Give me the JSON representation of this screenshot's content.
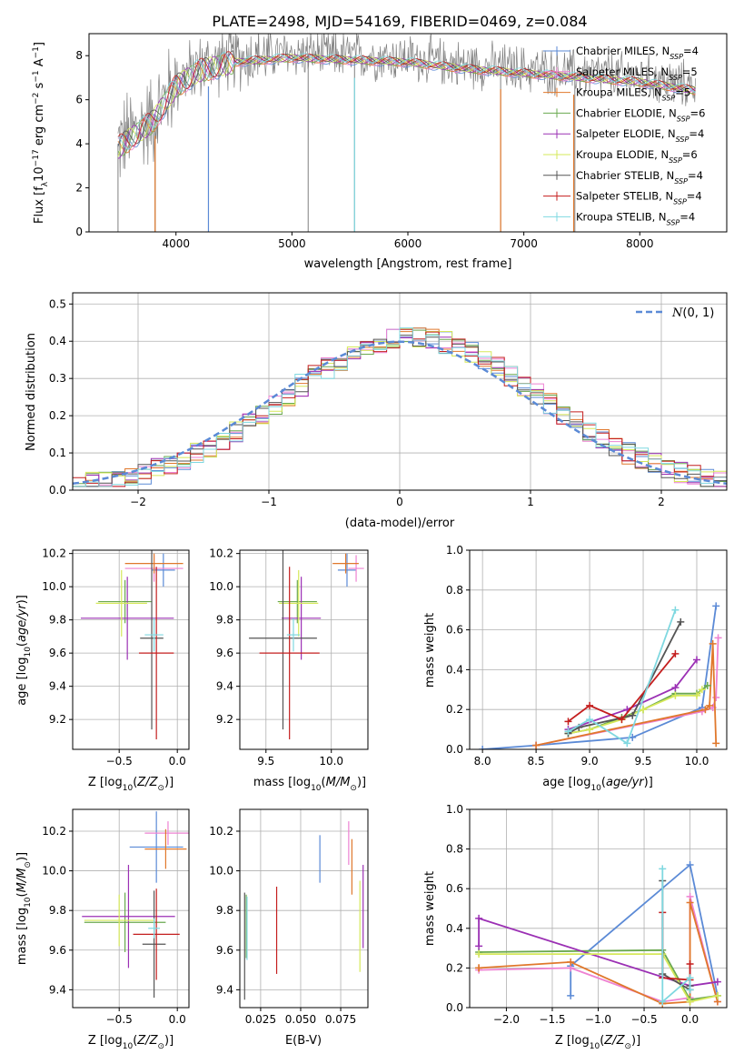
{
  "figure_title": "PLATE=2498, MJD=54169, FIBERID=0469, z=0.084",
  "colors": {
    "Chabrier MILES": "#5b8ad6",
    "Salpeter MILES": "#ee82d2",
    "Kroupa MILES": "#e0782c",
    "Chabrier ELODIE": "#6aa84f",
    "Salpeter ELODIE": "#9b30b4",
    "Kroupa ELODIE": "#d6e85a",
    "Chabrier STELIB": "#555555",
    "Salpeter STELIB": "#c41e1e",
    "Kroupa STELIB": "#7fd8e0",
    "spectrum": "#808080",
    "gaussian": "#5b8ad6"
  },
  "chart_data": [
    {
      "type": "line",
      "id": "spectrum",
      "xlabel": "wavelength [Angstrom, rest frame]",
      "ylabel": "Flux [f_λ 10^-17 erg cm^-2 s^-1 A^-1]",
      "xlim": [
        3250,
        8750
      ],
      "ylim": [
        0,
        9
      ],
      "xticks": [
        "4000",
        "5000",
        "6000",
        "7000",
        "8000"
      ],
      "yticks": [
        "0",
        "2",
        "4",
        "6",
        "8"
      ],
      "continuum": {
        "x": [
          3500,
          3800,
          4000,
          4200,
          4500,
          5000,
          5500,
          6000,
          6500,
          7000,
          7500,
          8000,
          8500
        ],
        "y": [
          4.0,
          5.2,
          6.8,
          7.5,
          7.9,
          8.1,
          8.0,
          7.9,
          7.6,
          7.4,
          7.2,
          7.0,
          6.6
        ]
      },
      "series": [
        {
          "name": "Chabrier MILES, N_SSP=4"
        },
        {
          "name": "Salpeter MILES, N_SSP=5"
        },
        {
          "name": "Kroupa MILES, N_SSP=5"
        },
        {
          "name": "Chabrier ELODIE, N_SSP=6"
        },
        {
          "name": "Salpeter ELODIE, N_SSP=4"
        },
        {
          "name": "Kroupa ELODIE, N_SSP=6"
        },
        {
          "name": "Chabrier STELIB, N_SSP=4"
        },
        {
          "name": "Salpeter STELIB, N_SSP=4"
        },
        {
          "name": "Kroupa STELIB, N_SSP=4"
        }
      ]
    },
    {
      "type": "line",
      "id": "residuals",
      "xlabel": "(data-model)/error",
      "ylabel": "Normed distribution",
      "xlim": [
        -2.5,
        2.5
      ],
      "ylim": [
        0,
        0.53
      ],
      "xticks": [
        "−2",
        "−1",
        "0",
        "1",
        "2"
      ],
      "yticks": [
        "0.0",
        "0.1",
        "0.2",
        "0.3",
        "0.4",
        "0.5"
      ],
      "legend": "N(0,1)",
      "legend_position": "top-right"
    },
    {
      "type": "scatter",
      "id": "age_vs_Z",
      "xlabel": "Z [log10(Z/Z⊙)]",
      "ylabel": "age [log10(age/yr)]",
      "xlim": [
        -0.9,
        0.1
      ],
      "ylim": [
        9.02,
        10.22
      ],
      "xticks": [
        "−0.5",
        "0.0"
      ],
      "yticks": [
        "9.2",
        "9.4",
        "9.6",
        "9.8",
        "10.0",
        "10.2"
      ],
      "points": [
        {
          "name": "Chabrier MILES",
          "x": -0.12,
          "xerr": 0.1,
          "y": 10.1,
          "yerr": 0.1
        },
        {
          "name": "Salpeter MILES",
          "x": -0.2,
          "xerr": 0.25,
          "y": 10.11,
          "yerr": 0.08
        },
        {
          "name": "Kroupa MILES",
          "x": -0.2,
          "xerr": 0.25,
          "y": 10.14,
          "yerr": 0.06
        },
        {
          "name": "Chabrier ELODIE",
          "x": -0.45,
          "xerr": 0.23,
          "y": 9.91,
          "yerr": 0.13
        },
        {
          "name": "Salpeter ELODIE",
          "x": -0.43,
          "xerr": 0.4,
          "y": 9.81,
          "yerr": 0.25
        },
        {
          "name": "Kroupa ELODIE",
          "x": -0.48,
          "xerr": 0.22,
          "y": 9.9,
          "yerr": 0.2
        },
        {
          "name": "Chabrier STELIB",
          "x": -0.22,
          "xerr": 0.1,
          "y": 9.69,
          "yerr": 0.55
        },
        {
          "name": "Salpeter STELIB",
          "x": -0.18,
          "xerr": 0.15,
          "y": 9.6,
          "yerr": 0.52
        },
        {
          "name": "Kroupa STELIB",
          "x": -0.2,
          "xerr": 0.08,
          "y": 9.71,
          "yerr": 0.1
        }
      ]
    },
    {
      "type": "scatter",
      "id": "age_vs_mass",
      "xlabel": "mass [log10(M/M⊙)]",
      "ylabel": "",
      "xlim": [
        9.3,
        10.28
      ],
      "ylim": [
        9.02,
        10.22
      ],
      "xticks": [
        "9.5",
        "10.0"
      ],
      "yticks": [
        "9.2",
        "9.4",
        "9.6",
        "9.8",
        "10.0",
        "10.2"
      ],
      "points": [
        {
          "name": "Chabrier MILES",
          "x": 10.12,
          "xerr": 0.07,
          "y": 10.1,
          "yerr": 0.1
        },
        {
          "name": "Salpeter MILES",
          "x": 10.19,
          "xerr": 0.06,
          "y": 10.11,
          "yerr": 0.08
        },
        {
          "name": "Kroupa MILES",
          "x": 10.11,
          "xerr": 0.1,
          "y": 10.14,
          "yerr": 0.06
        },
        {
          "name": "Chabrier ELODIE",
          "x": 9.74,
          "xerr": 0.15,
          "y": 9.91,
          "yerr": 0.13
        },
        {
          "name": "Salpeter ELODIE",
          "x": 9.77,
          "xerr": 0.15,
          "y": 9.81,
          "yerr": 0.25
        },
        {
          "name": "Kroupa ELODIE",
          "x": 9.75,
          "xerr": 0.15,
          "y": 9.9,
          "yerr": 0.2
        },
        {
          "name": "Chabrier STELIB",
          "x": 9.63,
          "xerr": 0.26,
          "y": 9.69,
          "yerr": 0.55
        },
        {
          "name": "Salpeter STELIB",
          "x": 9.68,
          "xerr": 0.23,
          "y": 9.6,
          "yerr": 0.52
        },
        {
          "name": "Kroupa STELIB",
          "x": 9.71,
          "xerr": 0.05,
          "y": 9.71,
          "yerr": 0.1
        }
      ]
    },
    {
      "type": "line",
      "id": "massweight_vs_age",
      "xlabel": "age [log10(age/yr)]",
      "ylabel": "mass weight",
      "xlim": [
        7.88,
        10.28
      ],
      "ylim": [
        0,
        1
      ],
      "xticks": [
        "8.0",
        "8.5",
        "9.0",
        "9.5",
        "10.0"
      ],
      "yticks": [
        "0.0",
        "0.2",
        "0.4",
        "0.6",
        "0.8",
        "1.0"
      ],
      "series": [
        {
          "name": "Chabrier MILES",
          "x": [
            8.0,
            8.5,
            9.4,
            10.05,
            10.18
          ],
          "y": [
            0.0,
            0.02,
            0.06,
            0.21,
            0.72
          ]
        },
        {
          "name": "Salpeter MILES",
          "x": [
            8.5,
            10.05,
            10.15,
            10.18,
            10.2
          ],
          "y": [
            0.02,
            0.19,
            0.21,
            0.26,
            0.56
          ]
        },
        {
          "name": "Kroupa MILES",
          "x": [
            8.5,
            10.08,
            10.12,
            10.15,
            10.18
          ],
          "y": [
            0.02,
            0.2,
            0.22,
            0.53,
            0.03
          ]
        },
        {
          "name": "Chabrier ELODIE",
          "x": [
            8.8,
            9.0,
            9.3,
            9.5,
            9.8,
            10.0,
            10.1
          ],
          "y": [
            0.08,
            0.1,
            0.16,
            0.2,
            0.28,
            0.28,
            0.32
          ]
        },
        {
          "name": "Salpeter ELODIE",
          "x": [
            8.8,
            9.35,
            9.8,
            10.0
          ],
          "y": [
            0.1,
            0.2,
            0.31,
            0.45
          ]
        },
        {
          "name": "Kroupa ELODIE",
          "x": [
            8.8,
            9.0,
            9.3,
            9.5,
            9.8,
            10.0,
            10.05
          ],
          "y": [
            0.08,
            0.1,
            0.15,
            0.2,
            0.27,
            0.27,
            0.3
          ]
        },
        {
          "name": "Chabrier STELIB",
          "x": [
            8.8,
            8.9,
            9.4,
            9.85
          ],
          "y": [
            0.08,
            0.11,
            0.17,
            0.64
          ]
        },
        {
          "name": "Salpeter STELIB",
          "x": [
            8.8,
            9.0,
            9.3,
            9.8
          ],
          "y": [
            0.14,
            0.22,
            0.15,
            0.48
          ]
        },
        {
          "name": "Kroupa STELIB",
          "x": [
            8.8,
            9.0,
            9.35,
            9.8
          ],
          "y": [
            0.09,
            0.15,
            0.03,
            0.7
          ]
        }
      ]
    },
    {
      "type": "scatter",
      "id": "mass_vs_Z",
      "xlabel": "Z [log10(Z/Z⊙)]",
      "ylabel": "mass [log10(M/M⊙)]",
      "xlim": [
        -0.9,
        0.1
      ],
      "ylim": [
        9.31,
        10.31
      ],
      "xticks": [
        "−0.5",
        "0.0"
      ],
      "yticks": [
        "9.4",
        "9.6",
        "9.8",
        "10.0",
        "10.2"
      ],
      "points": [
        {
          "name": "Chabrier MILES",
          "x": -0.18,
          "xerr": 0.23,
          "y": 10.12,
          "yerr": 0.18
        },
        {
          "name": "Salpeter MILES",
          "x": -0.08,
          "xerr": 0.2,
          "y": 10.19,
          "yerr": 0.06
        },
        {
          "name": "Kroupa MILES",
          "x": -0.1,
          "xerr": 0.18,
          "y": 10.11,
          "yerr": 0.1
        },
        {
          "name": "Chabrier ELODIE",
          "x": -0.45,
          "xerr": 0.35,
          "y": 9.74,
          "yerr": 0.15
        },
        {
          "name": "Salpeter ELODIE",
          "x": -0.42,
          "xerr": 0.4,
          "y": 9.77,
          "yerr": 0.26
        },
        {
          "name": "Kroupa ELODIE",
          "x": -0.5,
          "xerr": 0.3,
          "y": 9.75,
          "yerr": 0.13
        },
        {
          "name": "Chabrier STELIB",
          "x": -0.2,
          "xerr": 0.1,
          "y": 9.63,
          "yerr": 0.27
        },
        {
          "name": "Salpeter STELIB",
          "x": -0.18,
          "xerr": 0.2,
          "y": 9.68,
          "yerr": 0.23
        },
        {
          "name": "Kroupa STELIB",
          "x": -0.2,
          "xerr": 0.05,
          "y": 9.71,
          "yerr": 0.05
        }
      ]
    },
    {
      "type": "scatter",
      "id": "mass_vs_ebv",
      "xlabel": "E(B-V)",
      "ylabel": "",
      "xlim": [
        0.012,
        0.092
      ],
      "ylim": [
        9.31,
        10.31
      ],
      "xticks": [
        "0.025",
        "0.050",
        "0.075"
      ],
      "yticks": [
        "9.4",
        "9.6",
        "9.8",
        "10.0",
        "10.2"
      ],
      "points": [
        {
          "name": "Chabrier MILES",
          "x": 0.062,
          "xerr": 0.0,
          "y": 10.06,
          "yerr": 0.12
        },
        {
          "name": "Salpeter MILES",
          "x": 0.08,
          "xerr": 0.0,
          "y": 10.14,
          "yerr": 0.11
        },
        {
          "name": "Kroupa MILES",
          "x": 0.082,
          "xerr": 0.0,
          "y": 10.02,
          "yerr": 0.14
        },
        {
          "name": "Chabrier ELODIE",
          "x": 0.016,
          "xerr": 0.0,
          "y": 9.72,
          "yerr": 0.16
        },
        {
          "name": "Salpeter ELODIE",
          "x": 0.089,
          "xerr": 0.0,
          "y": 9.82,
          "yerr": 0.21
        },
        {
          "name": "Kroupa ELODIE",
          "x": 0.087,
          "xerr": 0.0,
          "y": 9.72,
          "yerr": 0.23
        },
        {
          "name": "Chabrier STELIB",
          "x": 0.015,
          "xerr": 0.0,
          "y": 9.62,
          "yerr": 0.27
        },
        {
          "name": "Salpeter STELIB",
          "x": 0.035,
          "xerr": 0.0,
          "y": 9.7,
          "yerr": 0.22
        },
        {
          "name": "Kroupa STELIB",
          "x": 0.0165,
          "xerr": 0.0,
          "y": 9.71,
          "yerr": 0.16
        }
      ]
    },
    {
      "type": "line",
      "id": "massweight_vs_Z",
      "xlabel": "Z [log10(Z/Z⊙)]",
      "ylabel": "mass weight",
      "xlim": [
        -2.4,
        0.4
      ],
      "ylim": [
        0,
        1
      ],
      "xticks": [
        "−2.0",
        "−1.5",
        "−1.0",
        "−0.5",
        "0.0"
      ],
      "yticks": [
        "0.0",
        "0.2",
        "0.4",
        "0.6",
        "0.8",
        "1.0"
      ],
      "series": [
        {
          "name": "Chabrier MILES",
          "x": [
            -1.3,
            -1.3,
            0.0,
            0.3
          ],
          "y": [
            0.06,
            0.21,
            0.72,
            0.06
          ]
        },
        {
          "name": "Salpeter MILES",
          "x": [
            -2.3,
            -1.3,
            -0.3,
            0.0,
            0.0,
            0.3
          ],
          "y": [
            0.19,
            0.2,
            0.03,
            0.05,
            0.56,
            0.03
          ]
        },
        {
          "name": "Kroupa MILES",
          "x": [
            -2.3,
            -2.3,
            -1.3,
            -0.3,
            0.0,
            0.0,
            0.3
          ],
          "y": [
            0.2,
            0.2,
            0.23,
            0.02,
            0.03,
            0.53,
            0.03
          ]
        },
        {
          "name": "Chabrier ELODIE",
          "x": [
            -2.3,
            -0.3,
            0.0,
            0.3
          ],
          "y": [
            0.28,
            0.29,
            0.04,
            0.06
          ]
        },
        {
          "name": "Salpeter ELODIE",
          "x": [
            -2.3,
            -2.3,
            0.0,
            0.3
          ],
          "y": [
            0.31,
            0.45,
            0.11,
            0.13
          ]
        },
        {
          "name": "Kroupa ELODIE",
          "x": [
            -2.3,
            -0.3,
            0.0,
            0.3
          ],
          "y": [
            0.27,
            0.27,
            0.03,
            0.06
          ]
        },
        {
          "name": "Chabrier STELIB",
          "x": [
            -0.3,
            -0.3,
            0.0,
            0.0
          ],
          "y": [
            0.64,
            0.17,
            0.09,
            0.11
          ]
        },
        {
          "name": "Salpeter STELIB",
          "x": [
            -0.3,
            -0.3,
            0.0,
            0.0
          ],
          "y": [
            0.48,
            0.15,
            0.14,
            0.22
          ]
        },
        {
          "name": "Kroupa STELIB",
          "x": [
            -0.3,
            -0.3,
            0.0,
            0.0
          ],
          "y": [
            0.7,
            0.03,
            0.15,
            0.09
          ]
        }
      ]
    }
  ]
}
